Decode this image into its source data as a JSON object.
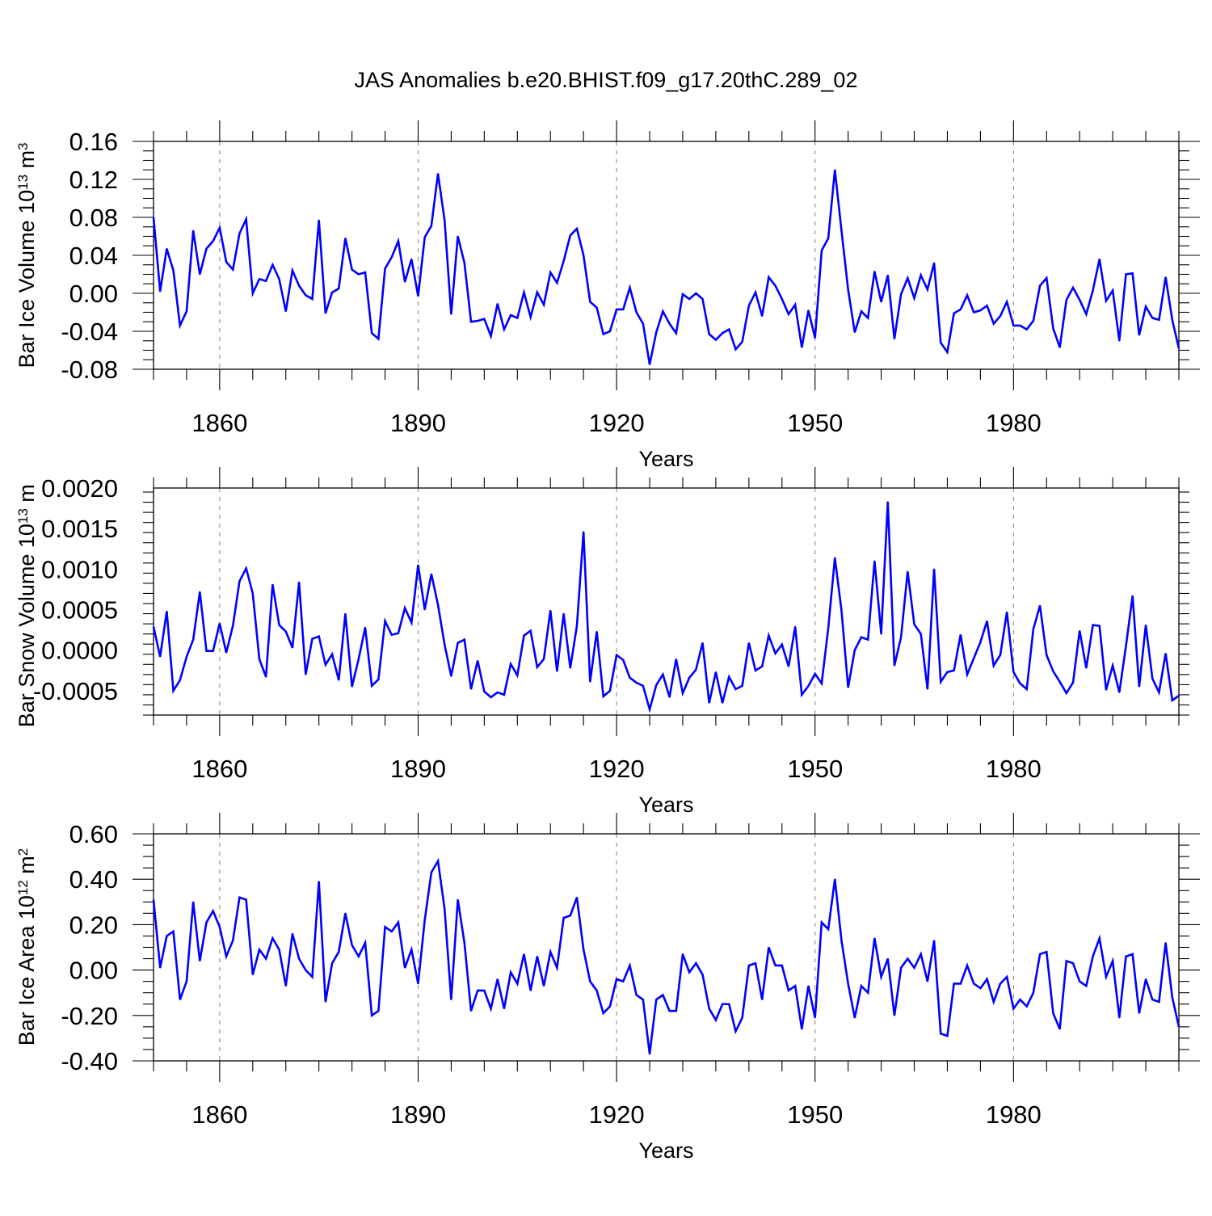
{
  "title": "JAS Anomalies b.e20.BHIST.f09_g17.20thC.289_02",
  "colors": {
    "series": "#0000ff",
    "axis": "#000000",
    "grid": "#808080"
  },
  "chart_data": [
    {
      "type": "line",
      "name": "ice-volume",
      "ylabel_main": "Bar Ice Volume 10",
      "ylabel_exp": "13",
      "ylabel_unit": " m",
      "ylabel_unit_exp": "3",
      "xlabel": "Years",
      "xlim": [
        1850,
        2005
      ],
      "ylim": [
        -0.08,
        0.16
      ],
      "yticks": [
        -0.08,
        -0.04,
        0.0,
        0.04,
        0.08,
        0.12,
        0.16
      ],
      "ytick_labels": [
        "-0.08",
        "-0.04",
        "0.00",
        "0.04",
        "0.08",
        "0.12",
        "0.16"
      ],
      "xticks": [
        1860,
        1890,
        1920,
        1950,
        1980
      ],
      "xtick_labels": [
        "1860",
        "1890",
        "1920",
        "1950",
        "1980"
      ],
      "x_start": 1850,
      "values": [
        0.08,
        0.002,
        0.047,
        0.024,
        -0.034,
        -0.019,
        0.066,
        0.02,
        0.047,
        0.055,
        0.069,
        0.033,
        0.025,
        0.063,
        0.078,
        0.0,
        0.015,
        0.013,
        0.03,
        0.015,
        -0.019,
        0.024,
        0.008,
        -0.002,
        -0.006,
        0.077,
        -0.021,
        0.001,
        0.005,
        0.058,
        0.025,
        0.02,
        0.022,
        -0.042,
        -0.048,
        0.026,
        0.038,
        0.055,
        0.012,
        0.036,
        -0.003,
        0.059,
        0.071,
        0.126,
        0.077,
        -0.022,
        0.06,
        0.032,
        -0.03,
        -0.029,
        -0.027,
        -0.045,
        -0.011,
        -0.038,
        -0.023,
        -0.026,
        0.001,
        -0.025,
        0.001,
        -0.012,
        0.022,
        0.011,
        0.034,
        0.061,
        0.068,
        0.04,
        -0.009,
        -0.015,
        -0.043,
        -0.04,
        -0.017,
        -0.017,
        0.006,
        -0.02,
        -0.032,
        -0.075,
        -0.041,
        -0.019,
        -0.032,
        -0.042,
        -0.001,
        -0.006,
        0.0,
        -0.006,
        -0.043,
        -0.049,
        -0.042,
        -0.038,
        -0.059,
        -0.051,
        -0.013,
        0.001,
        -0.024,
        0.017,
        0.008,
        -0.006,
        -0.022,
        -0.012,
        -0.057,
        -0.018,
        -0.047,
        0.045,
        0.058,
        0.13,
        0.066,
        0.004,
        -0.041,
        -0.019,
        -0.026,
        0.023,
        -0.009,
        0.019,
        -0.048,
        -0.001,
        0.016,
        -0.005,
        0.019,
        0.004,
        0.032,
        -0.052,
        -0.062,
        -0.021,
        -0.017,
        -0.002,
        -0.02,
        -0.018,
        -0.013,
        -0.032,
        -0.024,
        -0.009,
        -0.034,
        -0.034,
        -0.038,
        -0.029,
        0.008,
        0.016,
        -0.037,
        -0.057,
        -0.007,
        0.006,
        -0.007,
        -0.022,
        0.003,
        0.036,
        -0.008,
        0.003,
        -0.05,
        0.02,
        0.021,
        -0.044,
        -0.014,
        -0.026,
        -0.028,
        0.017,
        -0.028,
        -0.058
      ]
    },
    {
      "type": "line",
      "name": "snow-volume",
      "ylabel_main": "Bar Snow Volume 10",
      "ylabel_exp": "13",
      "ylabel_unit": " m",
      "ylabel_unit_exp": "3",
      "xlabel": "Years",
      "xlim": [
        1850,
        2005
      ],
      "ylim": [
        -0.0008,
        0.002
      ],
      "yticks": [
        -0.0005,
        0.0,
        0.0005,
        0.001,
        0.0015,
        0.002
      ],
      "ytick_labels": [
        "-0.0005",
        "0.0000",
        "0.0005",
        "0.0010",
        "0.0015",
        "0.0020"
      ],
      "xticks": [
        1860,
        1890,
        1920,
        1950,
        1980
      ],
      "xtick_labels": [
        "1860",
        "1890",
        "1920",
        "1950",
        "1980"
      ],
      "x_start": 1850,
      "values": [
        0.00029,
        -8e-05,
        0.00048,
        -0.0005,
        -0.00037,
        -8e-05,
        0.00013,
        0.00072,
        -1e-05,
        -1e-05,
        0.00033,
        -3e-05,
        0.0003,
        0.00085,
        0.00101,
        0.0007,
        -0.00011,
        -0.00033,
        0.00081,
        0.00031,
        0.00023,
        3e-05,
        0.00084,
        -0.0003,
        0.00014,
        0.00017,
        -0.00018,
        -5e-05,
        -0.00037,
        0.00045,
        -0.00045,
        -0.00011,
        0.00028,
        -0.00044,
        -0.00036,
        0.00036,
        0.00019,
        0.00021,
        0.00052,
        0.00034,
        0.00105,
        0.0005,
        0.00094,
        0.00056,
        7e-05,
        -0.00032,
        9e-05,
        0.00013,
        -0.00048,
        -0.00013,
        -0.00051,
        -0.00058,
        -0.00052,
        -0.00055,
        -0.00017,
        -0.00031,
        0.00018,
        0.00024,
        -0.00021,
        -0.00011,
        0.00049,
        -0.00026,
        0.00045,
        -0.00022,
        0.0003,
        0.00146,
        -0.00039,
        0.00023,
        -0.00057,
        -0.0005,
        -6e-05,
        -0.00012,
        -0.00034,
        -0.0004,
        -0.00044,
        -0.00073,
        -0.00043,
        -0.0003,
        -0.00058,
        -0.00011,
        -0.00053,
        -0.00034,
        -0.00024,
        9e-05,
        -0.00065,
        -0.00027,
        -0.00065,
        -0.00033,
        -0.00048,
        -0.00044,
        9e-05,
        -0.00025,
        -0.0002,
        0.00018,
        -4e-05,
        7e-05,
        -0.0002,
        0.00029,
        -0.00055,
        -0.00044,
        -0.00029,
        -0.00041,
        0.00027,
        0.00114,
        0.00049,
        -0.00046,
        0.0,
        0.00016,
        0.00013,
        0.0011,
        0.0002,
        0.00183,
        -0.00019,
        0.00016,
        0.00097,
        0.00032,
        0.0002,
        -0.00048,
        0.001,
        -0.00039,
        -0.00027,
        -0.00025,
        0.00019,
        -0.0003,
        -0.0001,
        0.0001,
        0.00036,
        -0.00019,
        -6e-05,
        0.00047,
        -0.00027,
        -0.00041,
        -0.00048,
        0.00026,
        0.00055,
        -6e-05,
        -0.00026,
        -0.00039,
        -0.00053,
        -0.0004,
        0.00024,
        -0.00022,
        0.00031,
        0.0003,
        -0.00049,
        -0.00019,
        -0.00052,
        5e-05,
        0.00067,
        -0.00045,
        0.00031,
        -0.00035,
        -0.00052,
        -4e-05,
        -0.00062,
        -0.00056
      ]
    },
    {
      "type": "line",
      "name": "ice-area",
      "ylabel_main": "Bar Ice Area 10",
      "ylabel_exp": "12",
      "ylabel_unit": " m",
      "ylabel_unit_exp": "2",
      "xlabel": "Years",
      "xlim": [
        1850,
        2005
      ],
      "ylim": [
        -0.4,
        0.6
      ],
      "yticks": [
        -0.4,
        -0.2,
        0.0,
        0.2,
        0.4,
        0.6
      ],
      "ytick_labels": [
        "-0.40",
        "-0.20",
        "0.00",
        "0.20",
        "0.40",
        "0.60"
      ],
      "xticks": [
        1860,
        1890,
        1920,
        1950,
        1980
      ],
      "xtick_labels": [
        "1860",
        "1890",
        "1920",
        "1950",
        "1980"
      ],
      "x_start": 1850,
      "values": [
        0.31,
        0.01,
        0.15,
        0.17,
        -0.13,
        -0.05,
        0.3,
        0.04,
        0.21,
        0.26,
        0.19,
        0.06,
        0.13,
        0.32,
        0.31,
        -0.02,
        0.09,
        0.05,
        0.14,
        0.09,
        -0.07,
        0.16,
        0.05,
        0.0,
        -0.03,
        0.39,
        -0.14,
        0.03,
        0.08,
        0.25,
        0.11,
        0.06,
        0.12,
        -0.2,
        -0.18,
        0.19,
        0.17,
        0.21,
        0.01,
        0.09,
        -0.06,
        0.22,
        0.43,
        0.48,
        0.27,
        -0.13,
        0.31,
        0.12,
        -0.18,
        -0.09,
        -0.09,
        -0.17,
        -0.04,
        -0.17,
        -0.01,
        -0.06,
        0.07,
        -0.09,
        0.06,
        -0.07,
        0.08,
        0.01,
        0.23,
        0.24,
        0.32,
        0.09,
        -0.05,
        -0.09,
        -0.19,
        -0.16,
        -0.04,
        -0.05,
        0.02,
        -0.11,
        -0.13,
        -0.37,
        -0.13,
        -0.11,
        -0.18,
        -0.18,
        0.07,
        -0.01,
        0.03,
        -0.02,
        -0.17,
        -0.22,
        -0.15,
        -0.15,
        -0.27,
        -0.21,
        0.02,
        0.03,
        -0.13,
        0.1,
        0.02,
        0.02,
        -0.09,
        -0.07,
        -0.26,
        -0.07,
        -0.21,
        0.21,
        0.18,
        0.4,
        0.13,
        -0.06,
        -0.21,
        -0.07,
        -0.1,
        0.14,
        -0.03,
        0.05,
        -0.2,
        0.01,
        0.05,
        0.01,
        0.07,
        -0.05,
        0.13,
        -0.28,
        -0.29,
        -0.06,
        -0.06,
        0.02,
        -0.06,
        -0.08,
        -0.04,
        -0.14,
        -0.06,
        -0.03,
        -0.17,
        -0.13,
        -0.16,
        -0.1,
        0.07,
        0.08,
        -0.19,
        -0.26,
        0.04,
        0.03,
        -0.05,
        -0.07,
        0.06,
        0.14,
        -0.03,
        0.04,
        -0.21,
        0.06,
        0.07,
        -0.19,
        -0.04,
        -0.13,
        -0.14,
        0.12,
        -0.12,
        -0.25
      ]
    }
  ]
}
